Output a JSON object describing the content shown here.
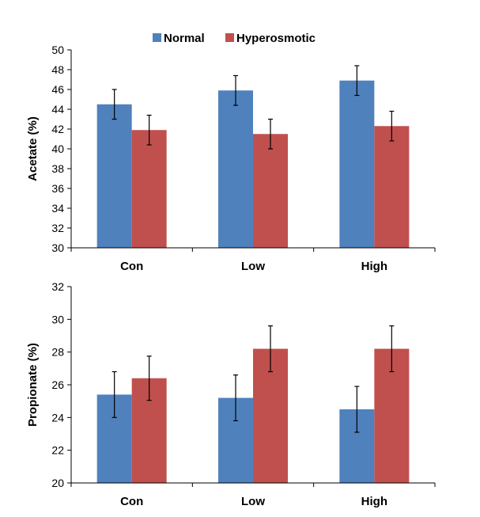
{
  "legend": {
    "items": [
      {
        "label": "Normal",
        "color": "#4f81bd"
      },
      {
        "label": "Hyperosmotic",
        "color": "#c0504d"
      }
    ],
    "placement": "top-center"
  },
  "chart_data": [
    {
      "type": "bar",
      "categories": [
        "Con",
        "Low",
        "High"
      ],
      "series": [
        {
          "name": "Normal",
          "color": "#4f81bd",
          "values": [
            44.5,
            45.9,
            46.9
          ],
          "errors": [
            1.5,
            1.5,
            1.5
          ]
        },
        {
          "name": "Hyperosmotic",
          "color": "#c0504d",
          "values": [
            41.9,
            41.5,
            42.3
          ],
          "errors": [
            1.5,
            1.5,
            1.5
          ]
        }
      ],
      "title": "",
      "xlabel": "",
      "ylabel": "Acetate (%)",
      "ylim": [
        30,
        50
      ],
      "yticks": [
        30,
        32,
        34,
        36,
        38,
        40,
        42,
        44,
        46,
        48,
        50
      ],
      "grid": false
    },
    {
      "type": "bar",
      "categories": [
        "Con",
        "Low",
        "High"
      ],
      "series": [
        {
          "name": "Normal",
          "color": "#4f81bd",
          "values": [
            25.4,
            25.2,
            24.5
          ],
          "errors": [
            1.4,
            1.4,
            1.4
          ]
        },
        {
          "name": "Hyperosmotic",
          "color": "#c0504d",
          "values": [
            26.4,
            28.2,
            28.2
          ],
          "errors": [
            1.35,
            1.4,
            1.4
          ]
        }
      ],
      "title": "",
      "xlabel": "",
      "ylabel": "Propionate (%)",
      "ylim": [
        20,
        32
      ],
      "yticks": [
        20,
        22,
        24,
        26,
        28,
        30,
        32
      ],
      "grid": false
    }
  ]
}
